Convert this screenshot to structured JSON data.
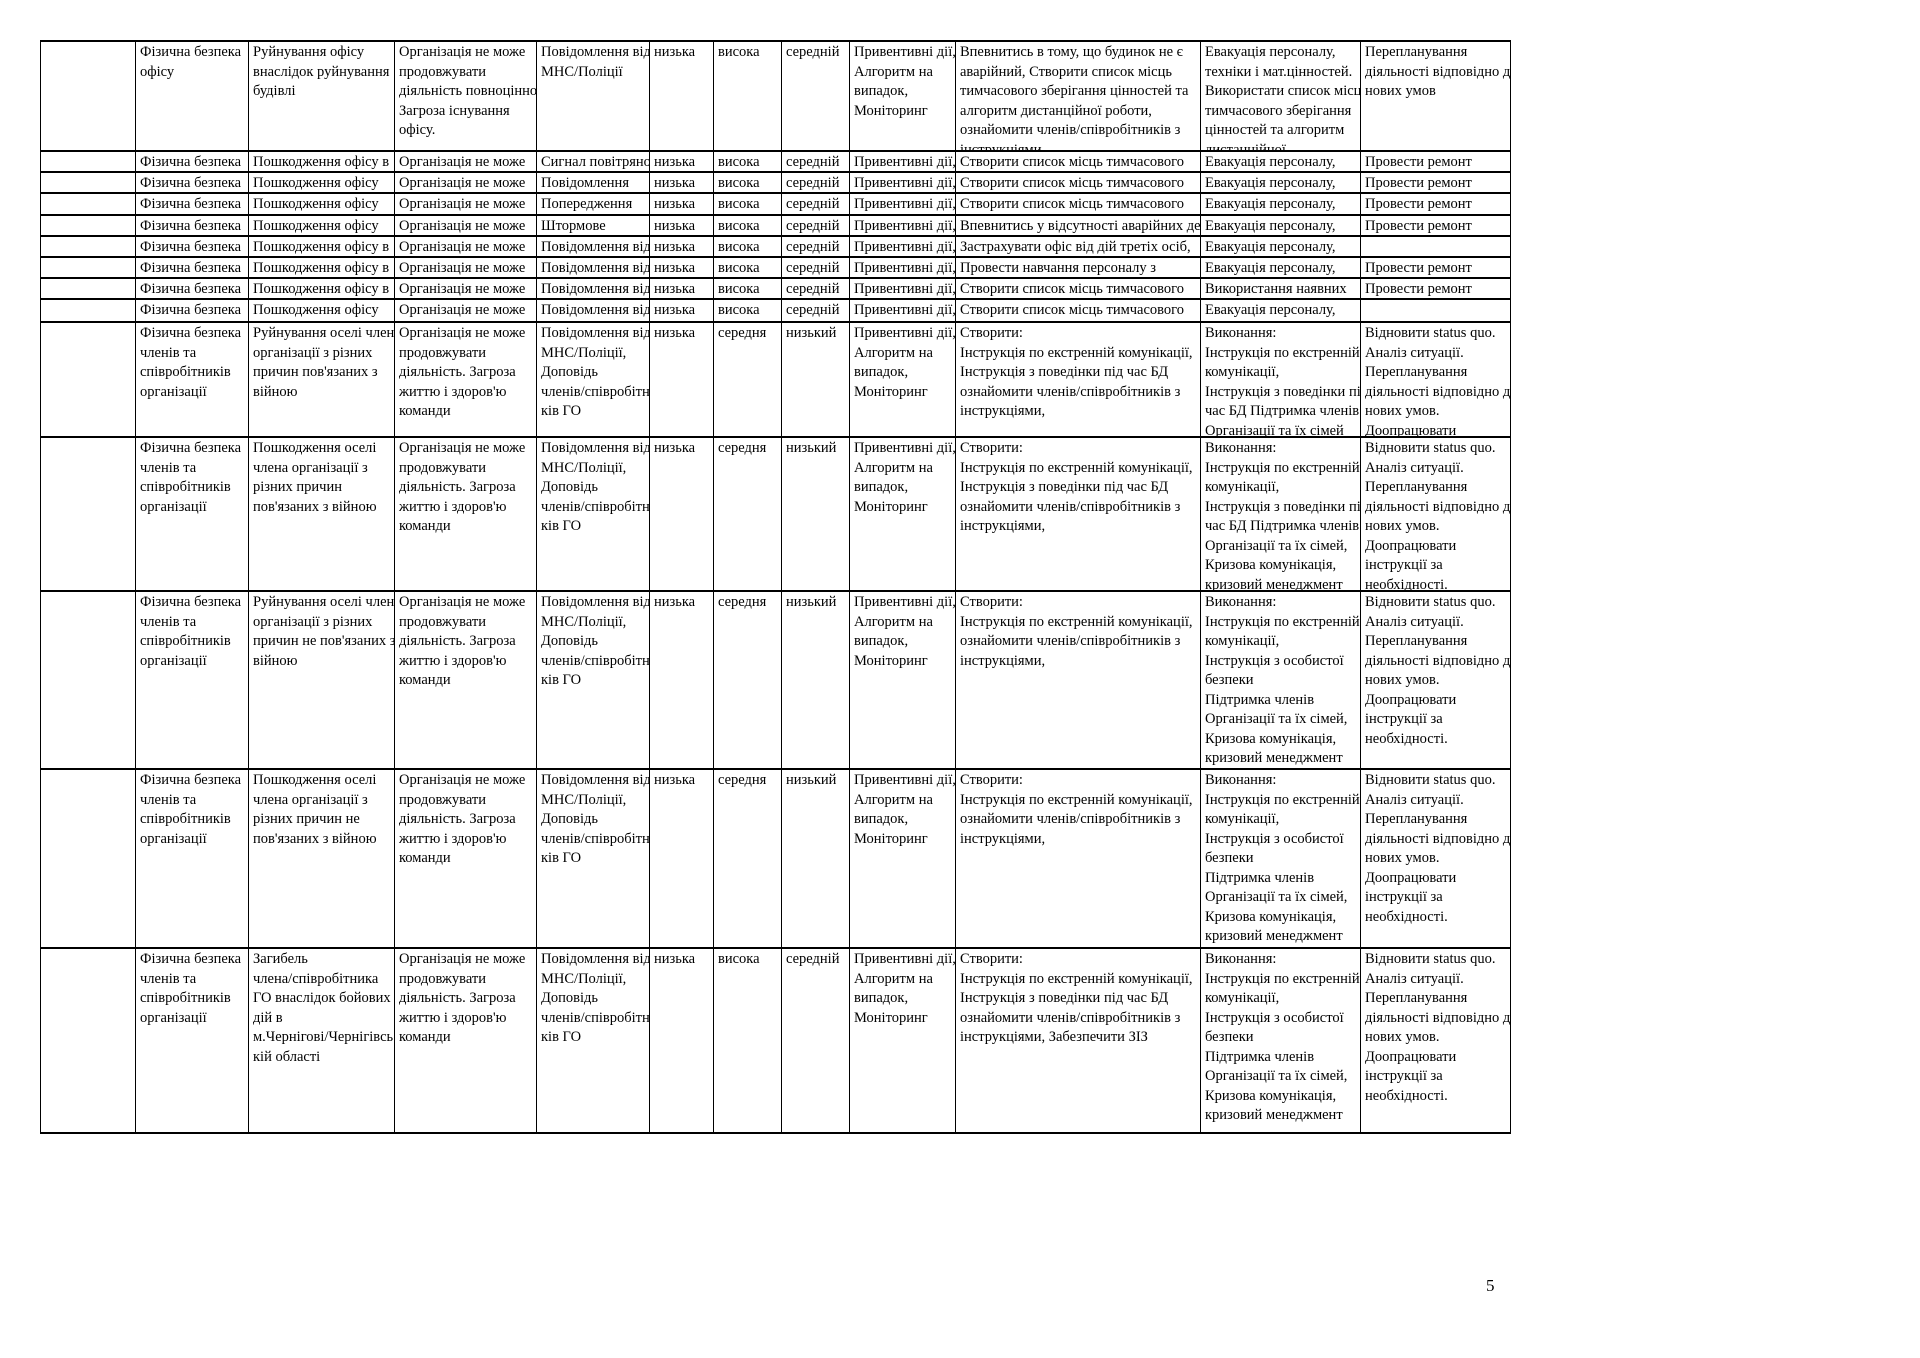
{
  "page": {
    "number": "5"
  },
  "table": {
    "rows": [
      {
        "cells": [
          "",
          "Фізична безпека\nофісу",
          "Руйнування офісу\nвнаслідок руйнування\nбудівлі",
          "Організація не може\nпродовжувати\nдіяльність повноцінно.\nЗагроза існування\nофісу.",
          "Повідомлення від\nМНС/Поліції",
          "низька",
          "висока",
          "середній",
          "Привентивні дії,\nАлгоритм на\nвипадок,\nМоніторинг",
          "Впевнитись в тому, що будинок не є\nаварійний, Створити список місць\nтимчасового зберігання цінностей та\nалгоритм дистанційної роботи,\nознайомити членів/співробітників з\nінструкціями",
          "Евакуація персоналу,\nтехніки і мат.цінностей.\nВикористати список місць\nтимчасового зберігання\nцінностей та алгоритм\nдистанційної",
          "Перепланування\nдіяльності відповідно до\nнових умов"
        ]
      },
      {
        "cells": [
          "",
          "Фізична безпека",
          "Пошкодження офісу в",
          "Організація не може",
          "Сигнал повітряної",
          "низька",
          "висока",
          "середній",
          "Привентивні дії,",
          "Створити список місць тимчасового",
          "Евакуація персоналу,",
          "Провести ремонт"
        ]
      },
      {
        "cells": [
          "",
          "Фізична безпека",
          "Пошкодження офісу",
          "Організація не може",
          "Повідомлення",
          "низька",
          "висока",
          "середній",
          "Привентивні дії,",
          "Створити список місць тимчасового",
          "Евакуація персоналу,",
          "Провести ремонт"
        ]
      },
      {
        "cells": [
          "",
          "Фізична безпека",
          "Пошкодження офісу",
          "Організація не може",
          "Попередження",
          "низька",
          "висока",
          "середній",
          "Привентивні дії,",
          "Створити список місць тимчасового",
          "Евакуація персоналу,",
          "Провести ремонт"
        ]
      },
      {
        "cells": [
          "",
          "Фізична безпека",
          "Пошкодження офісу",
          "Організація не може",
          "Штормове",
          "низька",
          "висока",
          "середній",
          "Привентивні дії,",
          "Впевнитись у відсутності аварійних дерев",
          "Евакуація персоналу,",
          "Провести ремонт"
        ]
      },
      {
        "cells": [
          "",
          "Фізична безпека",
          "Пошкодження офісу в",
          "Організація не може",
          "Повідомлення від",
          "низька",
          "висока",
          "середній",
          "Привентивні дії,",
          "Застрахувати офіс від дій третіх осіб,",
          "Евакуація персоналу,",
          ""
        ]
      },
      {
        "cells": [
          "",
          "Фізична безпека",
          "Пошкодження офісу в",
          "Організація не може",
          "Повідомлення від",
          "низька",
          "висока",
          "середній",
          "Привентивні дії,",
          "Провести навчання персоналу з",
          "Евакуація персоналу,",
          "Провести ремонт"
        ]
      },
      {
        "cells": [
          "",
          "Фізична безпека",
          "Пошкодження офісу в",
          "Організація не може",
          "Повідомлення від",
          "низька",
          "висока",
          "середній",
          "Привентивні дії,",
          "Створити список місць тимчасового",
          "Використання наявних",
          "Провести ремонт"
        ]
      },
      {
        "cells": [
          "",
          "Фізична безпека",
          "Пошкодження офісу",
          "Організація не може",
          "Повідомлення від",
          "низька",
          "висока",
          "середній",
          "Привентивні дії,",
          "Створити список місць тимчасового",
          "Евакуація персоналу,",
          ""
        ]
      },
      {
        "cells": [
          "",
          "Фізична безпека\nчленів та\nспівробітників\nорганізації",
          "Руйнування оселі члена\nорганізації з різних\nпричин пов'язаних з\nвійною",
          "Організація не може\nпродовжувати\nдіяльність. Загроза\nжиттю і здоров'ю\nкоманди",
          "Повідомлення від\nМНС/Поліції,\nДоповідь\nчленів/співробітни\nків ГО",
          "низька",
          "середня",
          "низький",
          "Привентивні дії,\nАлгоритм на\nвипадок,\nМоніторинг",
          "Створити:\nІнструкція по екстренній комунікації,\nІнструкція з поведінки під час БД\nознайомити членів/співробітників з\nінструкціями,",
          "Виконання:\nІнструкція по екстренній\nкомунікації,\nІнструкція з поведінки під\nчас БД Підтримка членів\nОрганізації та їх сімей",
          "Відновити status quo.\nАналіз ситуації.\nПерепланування\nдіяльності відповідно до\nнових умов.\nДоопрацювати"
        ]
      },
      {
        "cells": [
          "",
          "Фізична безпека\nчленів та\nспівробітників\nорганізації",
          "Пошкодження оселі\nчлена організації з\nрізних причин\nпов'язаних з війною",
          "Організація не може\nпродовжувати\nдіяльність. Загроза\nжиттю і здоров'ю\nкоманди",
          "Повідомлення від\nМНС/Поліції,\nДоповідь\nчленів/співробітни\nків ГО",
          "низька",
          "середня",
          "низький",
          "Привентивні дії,\nАлгоритм на\nвипадок,\nМоніторинг",
          "Створити:\nІнструкція по екстренній комунікації,\nІнструкція з поведінки під час БД\nознайомити членів/співробітників з\nінструкціями,",
          "Виконання:\nІнструкція по екстренній\nкомунікації,\nІнструкція з поведінки під\nчас БД Підтримка членів\nОрганізації та їх сімей,\nКризова комунікація,\nкризовий менеджмент",
          "Відновити status quo.\nАналіз ситуації.\nПерепланування\nдіяльності відповідно до\nнових умов.\nДоопрацювати\nінструкції за\nнеобхідності."
        ]
      },
      {
        "cells": [
          "",
          "Фізична безпека\nчленів та\nспівробітників\nорганізації",
          "Руйнування оселі члена\nорганізації з різних\nпричин не пов'язаних з\nвійною",
          "Організація не може\nпродовжувати\nдіяльність. Загроза\nжиттю і здоров'ю\nкоманди",
          "Повідомлення від\nМНС/Поліції,\nДоповідь\nчленів/співробітни\nків ГО",
          "низька",
          "середня",
          "низький",
          "Привентивні дії,\nАлгоритм на\nвипадок,\nМоніторинг",
          "Створити:\nІнструкція по екстренній комунікації,\nознайомити членів/співробітників з\nінструкціями,",
          "Виконання:\nІнструкція по екстренній\nкомунікації,\nІнструкція з особистої\nбезпеки\nПідтримка членів\nОрганізації та їх сімей,\nКризова комунікація,\nкризовий менеджмент",
          "Відновити status quo.\nАналіз ситуації.\nПерепланування\nдіяльності відповідно до\nнових умов.\nДоопрацювати\nінструкції за\nнеобхідності."
        ]
      },
      {
        "cells": [
          "",
          "Фізична безпека\nчленів та\nспівробітників\nорганізації",
          "Пошкодження оселі\nчлена організації з\nрізних причин не\nпов'язаних з війною",
          "Організація не може\nпродовжувати\nдіяльність. Загроза\nжиттю і здоров'ю\nкоманди",
          "Повідомлення від\nМНС/Поліції,\nДоповідь\nчленів/співробітни\nків ГО",
          "низька",
          "середня",
          "низький",
          "Привентивні дії,\nАлгоритм на\nвипадок,\nМоніторинг",
          "Створити:\nІнструкція по екстренній комунікації,\nознайомити членів/співробітників з\nінструкціями,",
          "Виконання:\nІнструкція по екстренній\nкомунікації,\nІнструкція з особистої\nбезпеки\nПідтримка членів\nОрганізації та їх сімей,\nКризова комунікація,\nкризовий менеджмент",
          "Відновити status quo.\nАналіз ситуації.\nПерепланування\nдіяльності відповідно до\nнових умов.\nДоопрацювати\nінструкції за\nнеобхідності."
        ]
      },
      {
        "cells": [
          "",
          "Фізична безпека\nчленів та\nспівробітників\nорганізації",
          "Загибель\nчлена/співробітника\nГО внаслідок бойових\nдій в\nм.Чернігові/Чернігівсь\nкій області",
          "Організація не може\nпродовжувати\nдіяльність. Загроза\nжиттю і здоров'ю\nкоманди",
          "Повідомлення від\nМНС/Поліції,\nДоповідь\nчленів/співробітни\nків ГО",
          "низька",
          "висока",
          "середній",
          "Привентивні дії,\nАлгоритм на\nвипадок,\nМоніторинг",
          "Створити:\nІнструкція по екстренній комунікації,\nІнструкція з поведінки під час БД\nознайомити членів/співробітників з\nінструкціями, Забезпечити ЗІЗ",
          "Виконання:\nІнструкція по екстренній\nкомунікації,\nІнструкція з особистої\nбезпеки\nПідтримка членів\nОрганізації та їх сімей,\nКризова комунікація,\nкризовий менеджмент",
          "Відновити status quo.\nАналіз ситуації.\nПерепланування\nдіяльності відповідно до\nнових умов.\nДоопрацювати\nінструкції за\nнеобхідності."
        ]
      }
    ]
  }
}
